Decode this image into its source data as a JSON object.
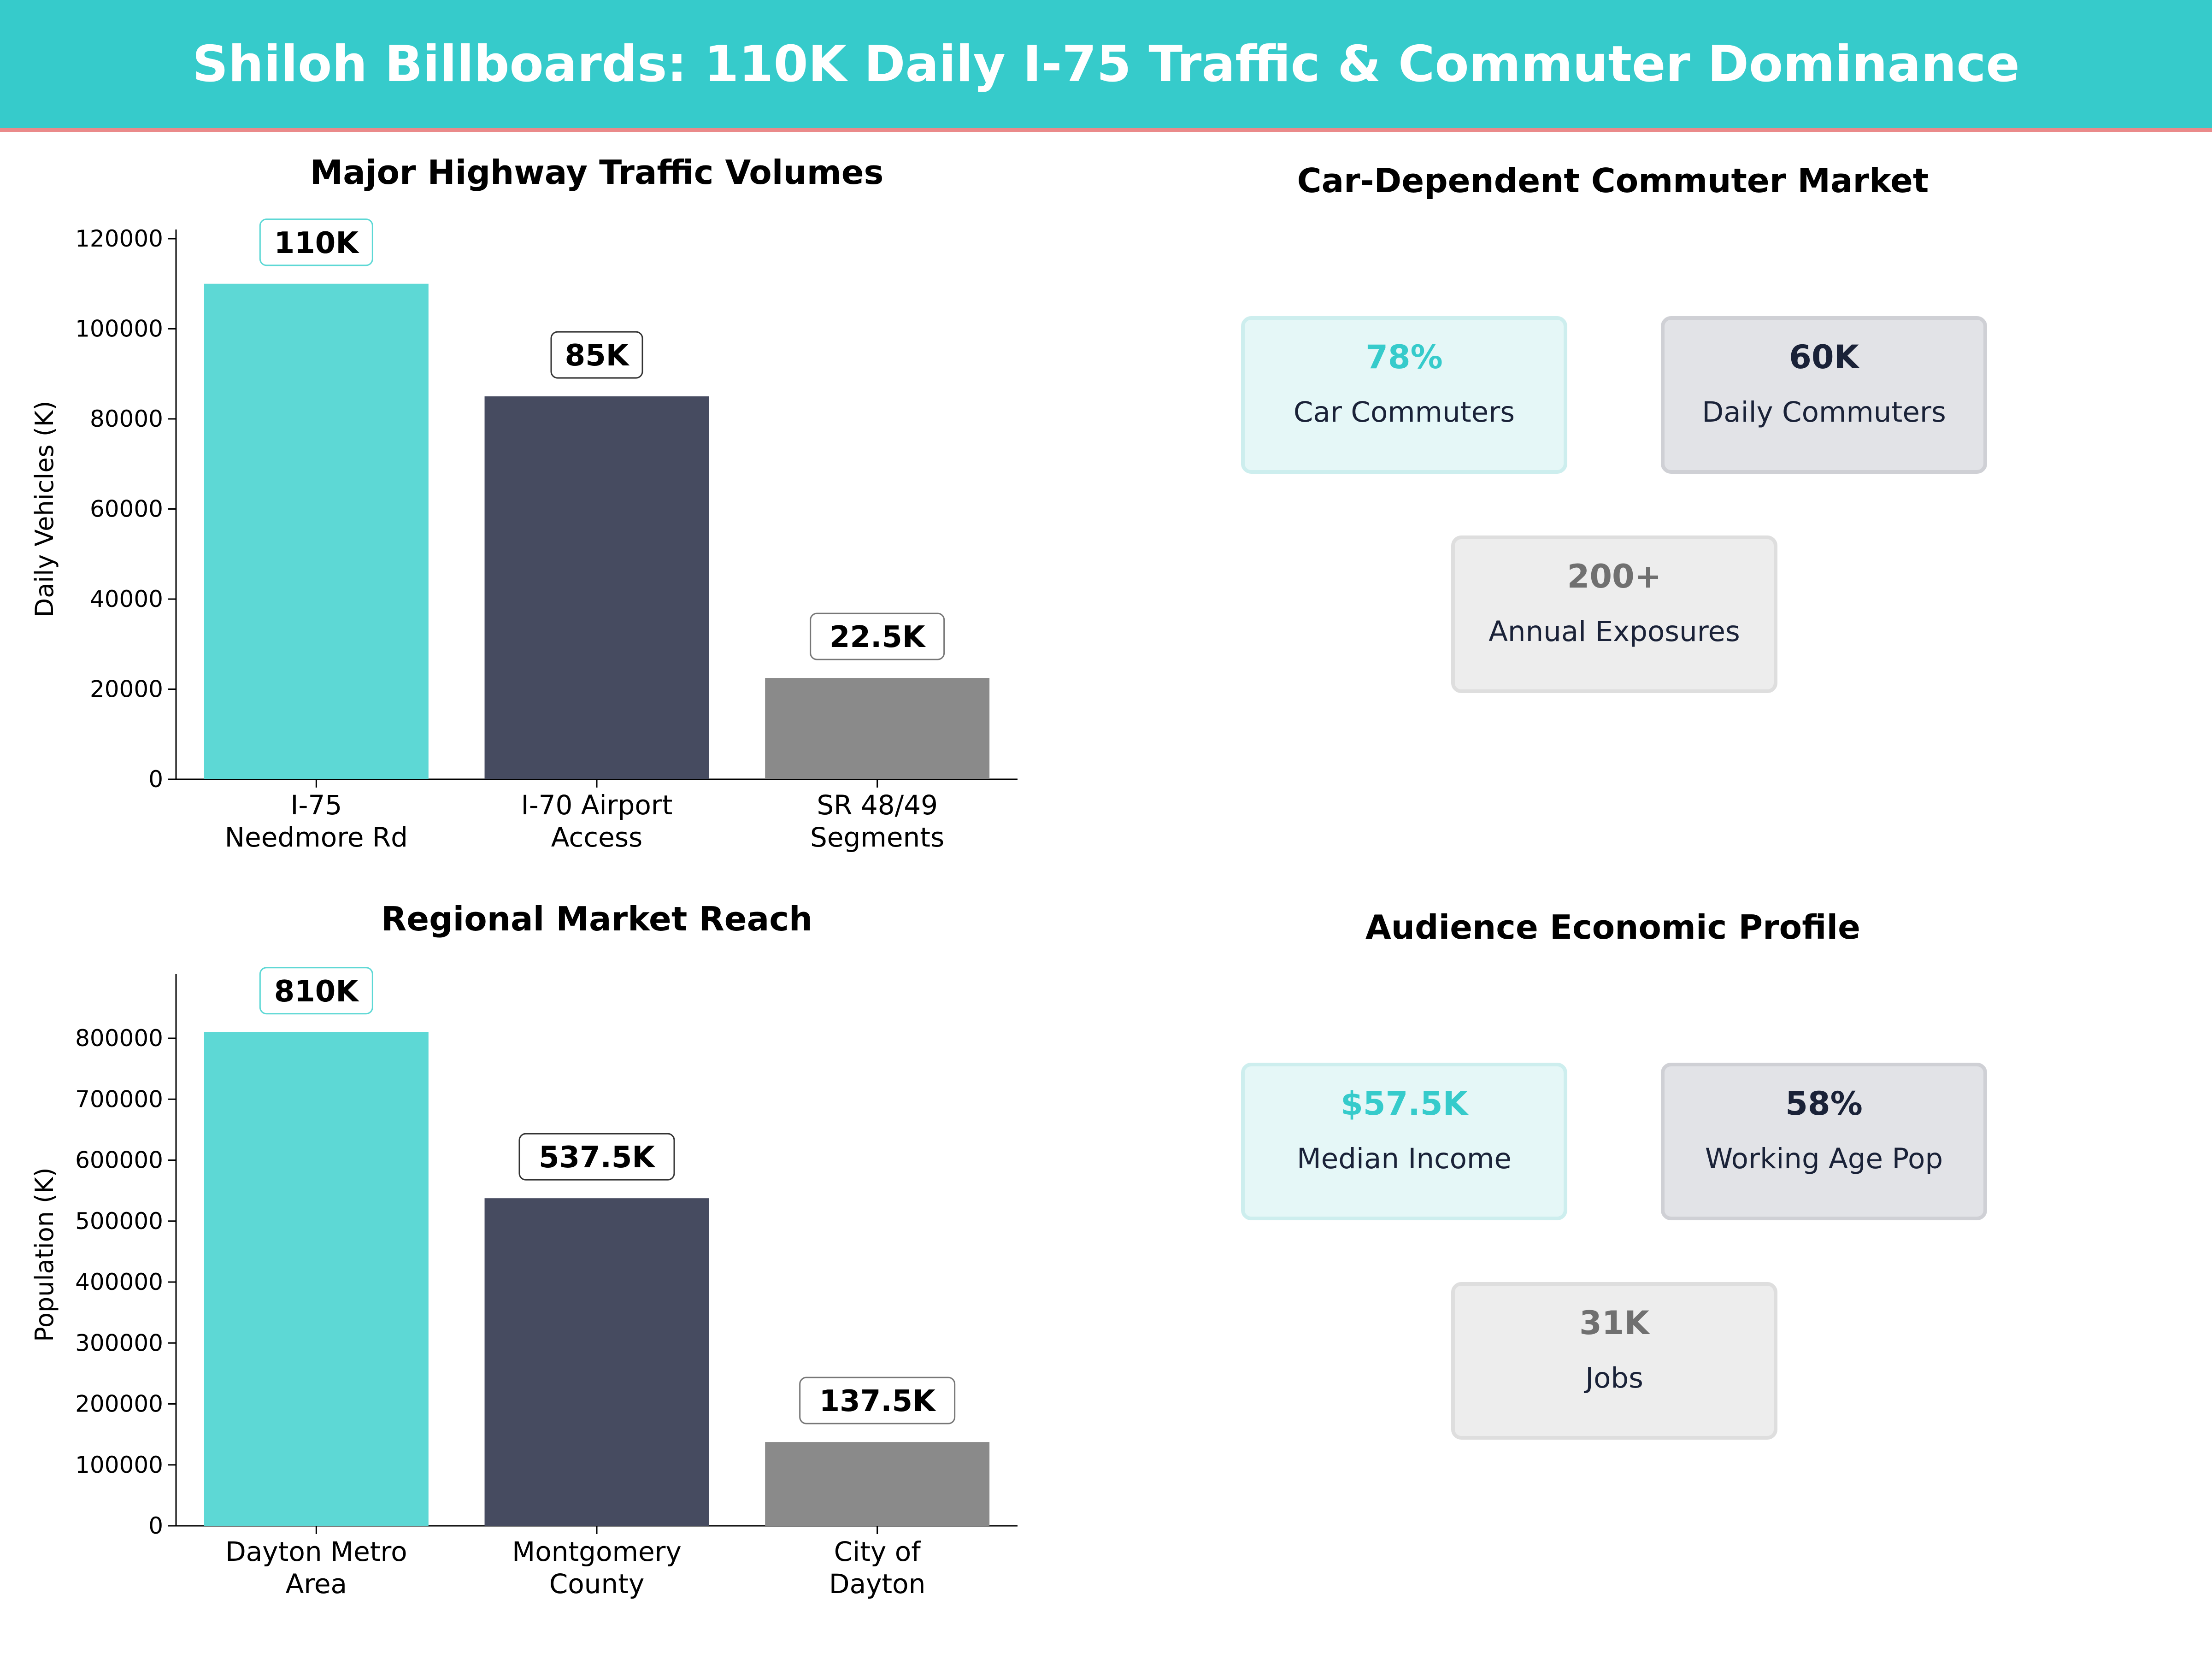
{
  "title": "Shiloh Billboards: 110K Daily I-75 Traffic & Commuter Dominance",
  "colors": {
    "header": "#36cbcb",
    "header_line": "#ea8a8a",
    "accent": "#36cbcb",
    "dark": "#1a2238",
    "gray": "#707070",
    "bar_colors": [
      "#5dd8d5",
      "#464b60",
      "#8a8a8a"
    ]
  },
  "chart_data": [
    {
      "type": "bar",
      "title": "Major Highway Traffic Volumes",
      "xlabel": "",
      "ylabel": "Daily Vehicles (K)",
      "categories": [
        "I-75\nNeedmore Rd",
        "I-70 Airport\nAccess",
        "SR 48/49\nSegments"
      ],
      "values": [
        110000,
        85000,
        22500
      ],
      "data_labels": [
        "110K",
        "85K",
        "22.5K"
      ],
      "ylim": [
        0,
        120000
      ],
      "yticks": [
        0,
        20000,
        40000,
        60000,
        80000,
        100000,
        120000
      ],
      "grid": false,
      "legend": "none"
    },
    {
      "type": "bar",
      "title": "Regional Market Reach",
      "xlabel": "",
      "ylabel": "Population (K)",
      "categories": [
        "Dayton Metro\nArea",
        "Montgomery\nCounty",
        "City of\nDayton"
      ],
      "values": [
        810000,
        537500,
        137500
      ],
      "data_labels": [
        "810K",
        "537.5K",
        "137.5K"
      ],
      "ylim": [
        0,
        890000
      ],
      "yticks": [
        0,
        100000,
        200000,
        300000,
        400000,
        500000,
        600000,
        700000,
        800000
      ],
      "grid": false,
      "legend": "none"
    }
  ],
  "commuter": {
    "title": "Car-Dependent Commuter Market",
    "cards": [
      {
        "value": "78%",
        "label": "Car Commuters"
      },
      {
        "value": "60K",
        "label": "Daily Commuters"
      },
      {
        "value": "200+",
        "label": "Annual Exposures"
      }
    ]
  },
  "economic": {
    "title": "Audience Economic Profile",
    "cards": [
      {
        "value": "$57.5K",
        "label": "Median Income"
      },
      {
        "value": "58%",
        "label": "Working Age Pop"
      },
      {
        "value": "31K",
        "label": "Jobs"
      }
    ]
  }
}
